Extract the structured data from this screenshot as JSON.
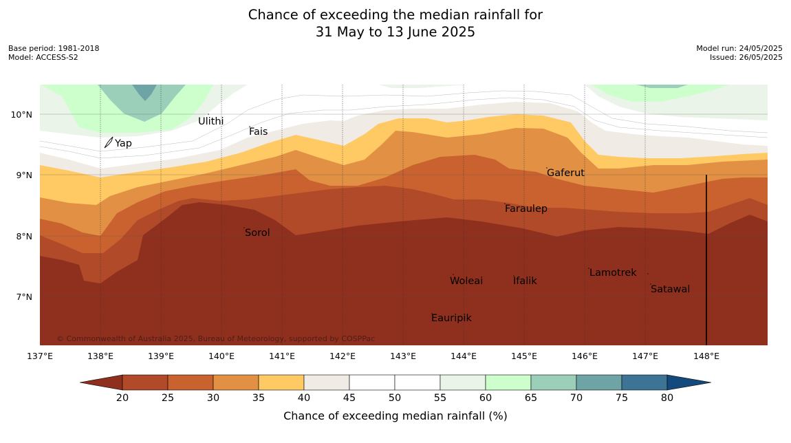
{
  "title": {
    "line1": "Chance of exceeding the median rainfall for",
    "line2": "31 May to 13 June 2025"
  },
  "meta_left": {
    "base_period": "Base period: 1981-2018",
    "model": "Model: ACCESS-S2"
  },
  "meta_right": {
    "model_run": "Model run: 24/05/2025",
    "issued": "Issued: 26/05/2025"
  },
  "map": {
    "lat_labels": [
      "10°N",
      "9°N",
      "8°N",
      "7°N"
    ],
    "lon_labels": [
      "137°E",
      "138°E",
      "139°E",
      "140°E",
      "141°E",
      "142°E",
      "143°E",
      "144°E",
      "145°E",
      "146°E",
      "147°E",
      "148°E"
    ],
    "places": [
      "Yap",
      "Ulithi",
      "Fais",
      "Gaferut",
      "Faraulep",
      "Sorol",
      "Woleai",
      "Ifalik",
      "Lamotrek",
      "Satawal",
      "Eauripik"
    ],
    "copyright": "© Commonwealth of Australia 2025, Bureau of Meteorology, supported by COSPPac"
  },
  "colorbar": {
    "ticks": [
      "20",
      "25",
      "30",
      "35",
      "40",
      "45",
      "50",
      "55",
      "60",
      "65",
      "70",
      "75",
      "80"
    ],
    "colors": {
      "below_20": "#8f2f1e",
      "20_25": "#b04a28",
      "25_30": "#c9622f",
      "30_35": "#e19044",
      "35_40": "#ffc964",
      "40_45": "#f0ebe4",
      "45_50": "#ffffff",
      "50_55": "#ffffff",
      "55_60": "#eaf4e8",
      "60_65": "#ccffcc",
      "65_70": "#9ccfba",
      "70_75": "#6fa4a6",
      "75_80": "#3d7496",
      "above_80": "#14497e"
    },
    "label": "Chance of exceeding median rainfall (%)"
  }
}
